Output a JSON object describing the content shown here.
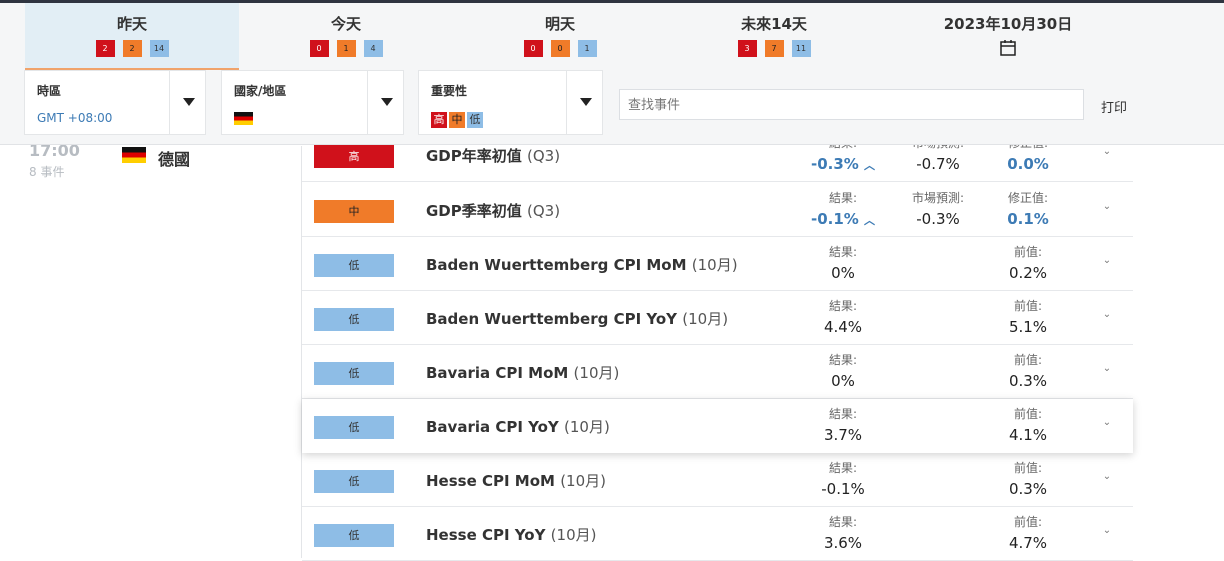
{
  "tabs": [
    {
      "label": "昨天",
      "high": "2",
      "med": "2",
      "low": "14"
    },
    {
      "label": "今天",
      "high": "0",
      "med": "1",
      "low": "4"
    },
    {
      "label": "明天",
      "high": "0",
      "med": "0",
      "low": "1"
    },
    {
      "label": "未來14天",
      "high": "3",
      "med": "7",
      "low": "11"
    },
    {
      "label": "2023年10月30日"
    }
  ],
  "filters": {
    "timezone_label": "時區",
    "timezone_value": "GMT +08:00",
    "country_label": "國家/地區",
    "importance_label": "重要性",
    "importance_tags": [
      "高",
      "中",
      "低"
    ]
  },
  "search": {
    "placeholder": "查找事件"
  },
  "print_label": "打印",
  "group": {
    "time": "17:00",
    "events": "8 事件",
    "country": "德國"
  },
  "events": [
    {
      "importance": "高",
      "name": "GDP年率初值",
      "period": "(Q3)",
      "actual_label": "結果:",
      "actual": "-0.3%",
      "forecast_label": "市場預測:",
      "forecast": "-0.7%",
      "prev_label": "修正值:",
      "prev": "0.0%"
    },
    {
      "importance": "中",
      "name": "GDP季率初值",
      "period": "(Q3)",
      "actual_label": "結果:",
      "actual": "-0.1%",
      "forecast_label": "市場預測:",
      "forecast": "-0.3%",
      "prev_label": "修正值:",
      "prev": "0.1%"
    },
    {
      "importance": "低",
      "name": "Baden Wuerttemberg CPI MoM",
      "period": "(10月)",
      "actual_label": "結果:",
      "actual": "0%",
      "prev_label": "前值:",
      "prev": "0.2%"
    },
    {
      "importance": "低",
      "name": "Baden Wuerttemberg CPI YoY",
      "period": "(10月)",
      "actual_label": "結果:",
      "actual": "4.4%",
      "prev_label": "前值:",
      "prev": "5.1%"
    },
    {
      "importance": "低",
      "name": "Bavaria CPI MoM",
      "period": "(10月)",
      "actual_label": "結果:",
      "actual": "0%",
      "prev_label": "前值:",
      "prev": "0.3%"
    },
    {
      "importance": "低",
      "name": "Bavaria CPI YoY",
      "period": "(10月)",
      "actual_label": "結果:",
      "actual": "3.7%",
      "prev_label": "前值:",
      "prev": "4.1%"
    },
    {
      "importance": "低",
      "name": "Hesse CPI MoM",
      "period": "(10月)",
      "actual_label": "結果:",
      "actual": "-0.1%",
      "prev_label": "前值:",
      "prev": "0.3%"
    },
    {
      "importance": "低",
      "name": "Hesse CPI YoY",
      "period": "(10月)",
      "actual_label": "結果:",
      "actual": "3.6%",
      "prev_label": "前值:",
      "prev": "4.7%"
    }
  ],
  "colors": {
    "high": "#d0111b",
    "medium": "#f07b29",
    "low": "#8ebde6",
    "accent": "#3d7bb5"
  },
  "icons": {
    "calendar": "calendar-icon",
    "dropdown": "caret-down-icon",
    "expand": "chevron-down-icon",
    "trend": "arrow-up-icon"
  }
}
